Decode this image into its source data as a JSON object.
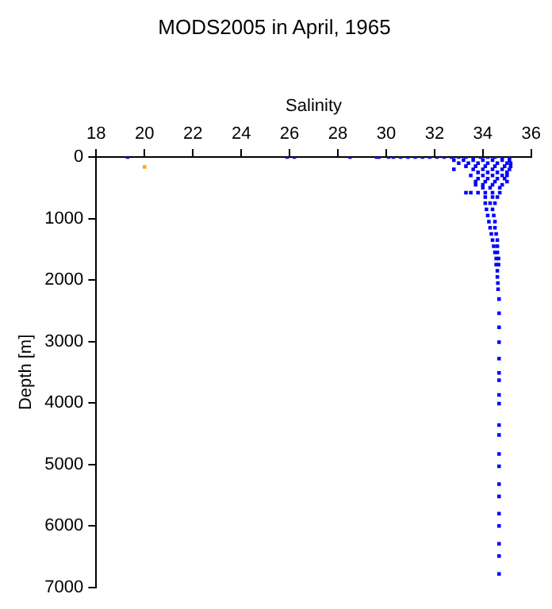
{
  "chart_data": {
    "type": "scatter",
    "title": "MODS2005 in April, 1965",
    "xlabel": "Salinity",
    "ylabel": "Depth [m]",
    "xlim": [
      18,
      36
    ],
    "xticks": [
      18,
      20,
      22,
      24,
      26,
      28,
      30,
      32,
      34,
      36
    ],
    "ylim": [
      7000,
      0
    ],
    "yticks": [
      0,
      1000,
      2000,
      3000,
      4000,
      5000,
      6000,
      7000
    ],
    "grid": false,
    "legend": false,
    "marker": "square",
    "series": [
      {
        "color": "#0000ff",
        "x": [
          19.3,
          25.9,
          26.2,
          28.5,
          29.6,
          29.7,
          30.1,
          30.3,
          30.6,
          30.9,
          31.2,
          31.5,
          31.8,
          32.1,
          32.4,
          32.7,
          33.0,
          33.3,
          33.6,
          33.9,
          34.2,
          34.5,
          34.8,
          35.1,
          32.8,
          33.2,
          33.6,
          34.0,
          34.4,
          34.8,
          35.1,
          33.0,
          33.4,
          33.8,
          34.2,
          34.6,
          35.0,
          35.15,
          33.3,
          33.7,
          34.1,
          34.5,
          34.9,
          35.15,
          32.8,
          33.6,
          34.0,
          34.4,
          34.8,
          35.1,
          33.8,
          34.2,
          34.6,
          35.0,
          33.5,
          34.0,
          34.4,
          34.8,
          35.0,
          33.8,
          34.2,
          34.6,
          34.9,
          33.7,
          34.1,
          34.5,
          35.0,
          33.7,
          34.0,
          34.4,
          34.8,
          34.0,
          34.3,
          34.7,
          33.3,
          33.5,
          33.8,
          34.1,
          34.4,
          34.7,
          34.1,
          34.4,
          34.6,
          34.1,
          34.3,
          34.5,
          34.15,
          34.4,
          34.2,
          34.45,
          34.25,
          34.5,
          34.3,
          34.5,
          34.35,
          34.55,
          34.4,
          34.6,
          34.45,
          34.6,
          34.5,
          34.6,
          34.55,
          34.65,
          34.55,
          34.65,
          34.6,
          34.6,
          34.62,
          34.63,
          34.67,
          34.67,
          34.67,
          34.67,
          34.67,
          34.67,
          34.67,
          34.67,
          34.67,
          34.67,
          34.67,
          34.67,
          34.67,
          34.67,
          34.67,
          34.67,
          34.67,
          34.67,
          34.67,
          34.67
        ],
        "values": [
          0,
          0,
          0,
          0,
          0,
          0,
          0,
          0,
          0,
          0,
          0,
          0,
          0,
          0,
          0,
          0,
          0,
          0,
          0,
          0,
          0,
          0,
          0,
          0,
          50,
          50,
          50,
          50,
          50,
          50,
          50,
          100,
          100,
          100,
          100,
          100,
          100,
          100,
          150,
          150,
          150,
          150,
          150,
          150,
          200,
          200,
          200,
          200,
          200,
          200,
          250,
          250,
          250,
          250,
          300,
          300,
          300,
          300,
          300,
          350,
          350,
          350,
          350,
          400,
          400,
          400,
          400,
          450,
          450,
          450,
          450,
          500,
          500,
          500,
          580,
          580,
          580,
          580,
          580,
          580,
          650,
          650,
          650,
          750,
          750,
          750,
          850,
          850,
          950,
          950,
          1050,
          1050,
          1150,
          1150,
          1250,
          1250,
          1350,
          1350,
          1450,
          1450,
          1550,
          1550,
          1650,
          1650,
          1750,
          1750,
          1850,
          1950,
          2050,
          2150,
          2310,
          2540,
          2770,
          3010,
          3280,
          3510,
          3630,
          3870,
          4010,
          4360,
          4520,
          4830,
          5030,
          5320,
          5520,
          5800,
          6000,
          6290,
          6490,
          6780
        ]
      },
      {
        "color": "#ffa500",
        "x": [
          20.0
        ],
        "values": [
          160
        ]
      }
    ]
  }
}
